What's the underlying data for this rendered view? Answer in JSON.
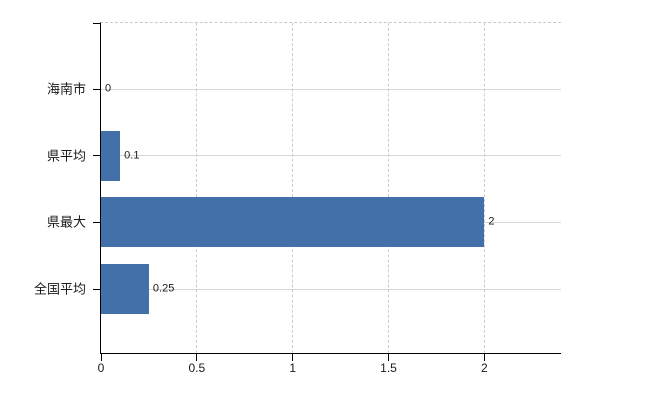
{
  "chart_data": {
    "type": "bar",
    "orientation": "horizontal",
    "title": "",
    "xlabel": "",
    "ylabel": "",
    "categories": [
      "海南市",
      "県平均",
      "県最大",
      "全国平均"
    ],
    "values": [
      0,
      0.1,
      2,
      0.25
    ],
    "value_labels": [
      "0",
      "0.1",
      "2",
      "0.25"
    ],
    "x_ticks": [
      0,
      0.5,
      1,
      1.5,
      2
    ],
    "x_tick_labels": [
      "0",
      "0.5",
      "1",
      "1.5",
      "2"
    ],
    "xlim": [
      0,
      2.4
    ],
    "grid": true,
    "legend": false,
    "colors": {
      "bar": "#4370a9",
      "axis": "#000000",
      "gridline_horizontal": "#d8d8d2",
      "gridline_vertical": "#cccccc",
      "top_border": "#c9c9c9",
      "text": "#1a1a1a"
    }
  }
}
